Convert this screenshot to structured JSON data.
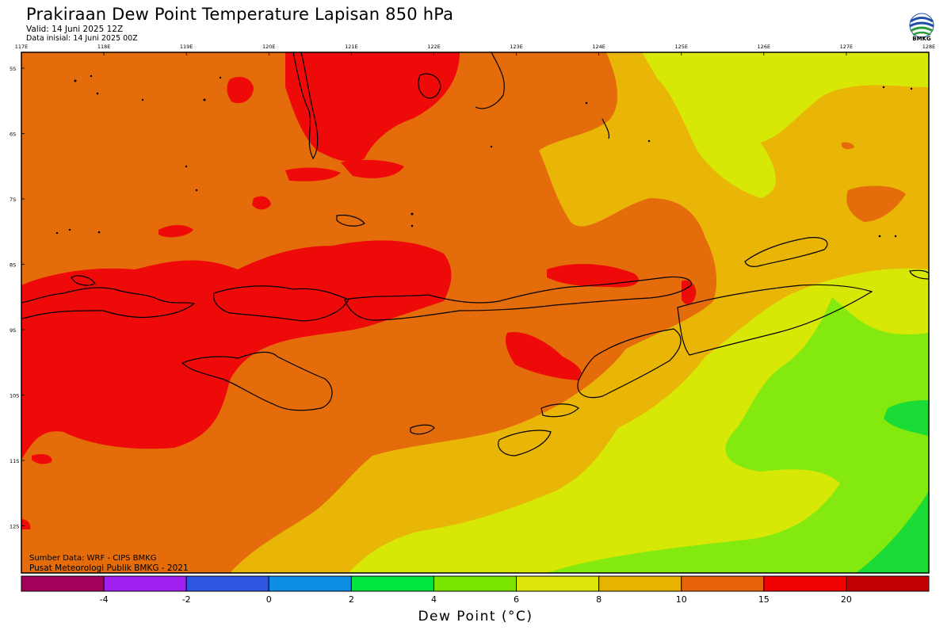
{
  "header": {
    "title": "Prakiraan Dew Point Temperature Lapisan 850 hPa",
    "valid": "Valid: 14 Juni 2025 12Z",
    "initial": "Data inisial: 14 Juni 2025 00Z"
  },
  "logo": {
    "icon": "bmkg-logo-icon",
    "label": "BMKG"
  },
  "map": {
    "lon_labels": [
      "117E",
      "118E",
      "119E",
      "120E",
      "121E",
      "122E",
      "123E",
      "124E",
      "125E",
      "126E",
      "127E",
      "128E"
    ],
    "lat_labels": [
      "5S",
      "6S",
      "7S",
      "8S",
      "9S",
      "10S",
      "11S",
      "12S"
    ]
  },
  "footer": {
    "source": "Sumber Data: WRF - CIPS BMKG",
    "credit": "Pusat Meteorologi Publik BMKG - 2021"
  },
  "colorbar": {
    "title": "Dew Point (°C)",
    "tick_labels": [
      "-4",
      "-2",
      "0",
      "2",
      "4",
      "6",
      "8",
      "10",
      "15",
      "20"
    ],
    "colors": [
      "#a3005a",
      "#a020f0",
      "#2c55e0",
      "#0c8ee6",
      "#00e540",
      "#7ae600",
      "#dde60a",
      "#e6b400",
      "#e86408",
      "#f00000",
      "#c00000"
    ]
  },
  "palette": {
    "orange": "#e56c0a",
    "amber": "#e9b506",
    "yellow": "#d8e806",
    "green": "#84e90e",
    "bright_green": "#1bdc36",
    "red": "#ef0a0a",
    "coast": "#000000"
  }
}
